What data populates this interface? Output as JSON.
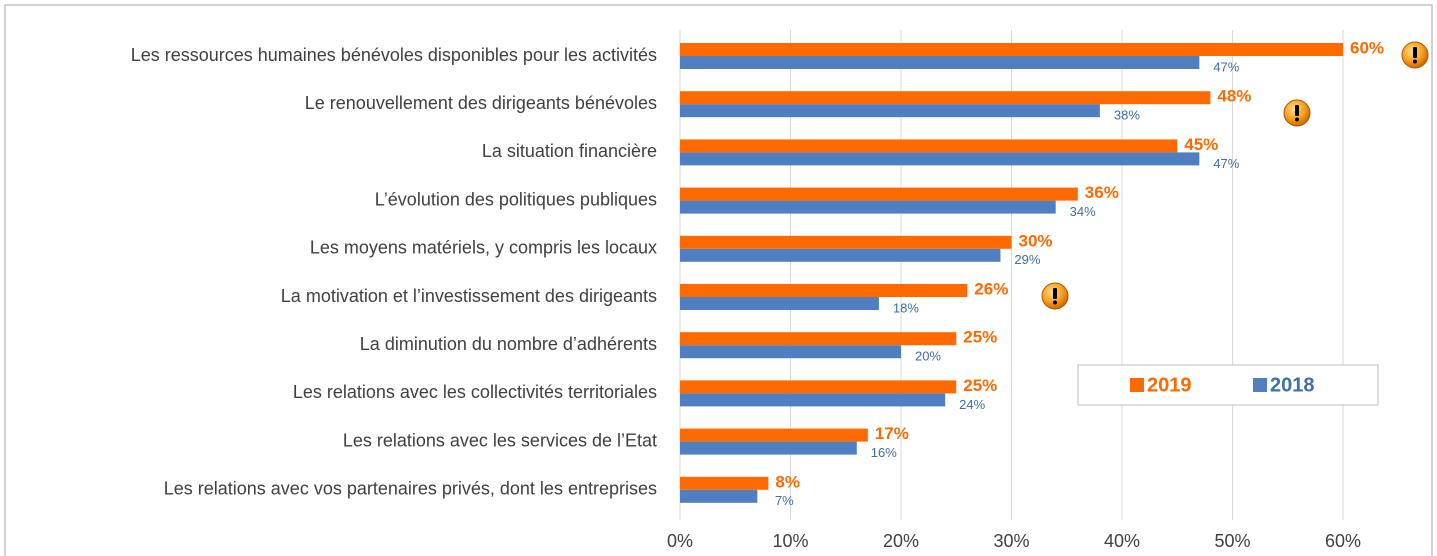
{
  "chart_data": {
    "type": "bar",
    "orientation": "horizontal",
    "categories": [
      "Les ressources humaines bénévoles disponibles pour les activités",
      "Le renouvellement des dirigeants bénévoles",
      "La situation financière",
      "L’évolution des politiques publiques",
      "Les moyens matériels, y compris les locaux",
      "La motivation et l’investissement des dirigeants",
      "La diminution du nombre d’adhérents",
      "Les relations avec les collectivités territoriales",
      "Les relations avec les services de l’Etat",
      "Les relations avec vos partenaires privés, dont les entreprises"
    ],
    "series": [
      {
        "name": "2019",
        "color": "#ff6a00",
        "values": [
          60,
          48,
          45,
          36,
          30,
          26,
          25,
          25,
          17,
          8
        ],
        "value_labels": [
          "60%",
          "48%",
          "45%",
          "36%",
          "30%",
          "26%",
          "25%",
          "25%",
          "17%",
          "8%"
        ]
      },
      {
        "name": "2018",
        "color": "#4f7fc0",
        "values": [
          47,
          38,
          47,
          34,
          29,
          18,
          20,
          24,
          16,
          7
        ],
        "value_labels": [
          "47%",
          "38%",
          "47%",
          "34%",
          "29%",
          "18%",
          "20%",
          "24%",
          "16%",
          "7%"
        ]
      }
    ],
    "xlim": [
      0,
      60
    ],
    "xticks": [
      {
        "value": 0,
        "label": "0%"
      },
      {
        "value": 10,
        "label": "10%"
      },
      {
        "value": 20,
        "label": "20%"
      },
      {
        "value": 30,
        "label": "30%"
      },
      {
        "value": 40,
        "label": "40%"
      },
      {
        "value": 50,
        "label": "50%"
      },
      {
        "value": 60,
        "label": "60%"
      }
    ],
    "grid": true
  }
}
